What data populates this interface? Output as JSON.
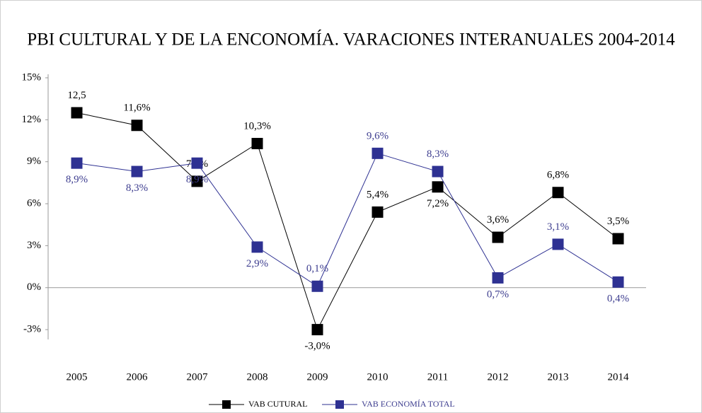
{
  "chart_data": {
    "type": "line",
    "title": "PBI CULTURAL Y DE LA ENCONOMÍA. VARACIONES INTERANUALES 2004-2014",
    "categories": [
      "2005",
      "2006",
      "2007",
      "2008",
      "2009",
      "2010",
      "2011",
      "2012",
      "2013",
      "2014"
    ],
    "series": [
      {
        "name": "VAB CUTURAL",
        "color": "#000000",
        "values": [
          12.5,
          11.6,
          7.6,
          10.3,
          -3.0,
          5.4,
          7.2,
          3.6,
          6.8,
          3.5
        ],
        "value_labels": [
          "12,5",
          "11,6%",
          "7,6%",
          "10,3%",
          "-3,0%",
          "5,4%",
          "7,2%",
          "3,6%",
          "6,8%",
          "3,5%"
        ]
      },
      {
        "name": "VAB ECONOMÍA TOTAL",
        "color": "#2e3192",
        "values": [
          8.9,
          8.3,
          8.9,
          2.9,
          0.1,
          9.6,
          8.3,
          0.7,
          3.1,
          0.4
        ],
        "value_labels": [
          "8,9%",
          "8,3%",
          "8,9%",
          "2,9%",
          "0,1%",
          "9,6%",
          "8,3%",
          "0,7%",
          "3,1%",
          "0,4%"
        ]
      }
    ],
    "ylim": [
      -3.5,
      15
    ],
    "yticks": [
      {
        "value": 15,
        "label": "15%"
      },
      {
        "value": 12,
        "label": "12%"
      },
      {
        "value": 9,
        "label": "9%"
      },
      {
        "value": 6,
        "label": "6%"
      },
      {
        "value": 3,
        "label": "3%"
      },
      {
        "value": 0,
        "label": "0%"
      },
      {
        "value": -3,
        "label": "-3%"
      }
    ],
    "grid": false
  }
}
